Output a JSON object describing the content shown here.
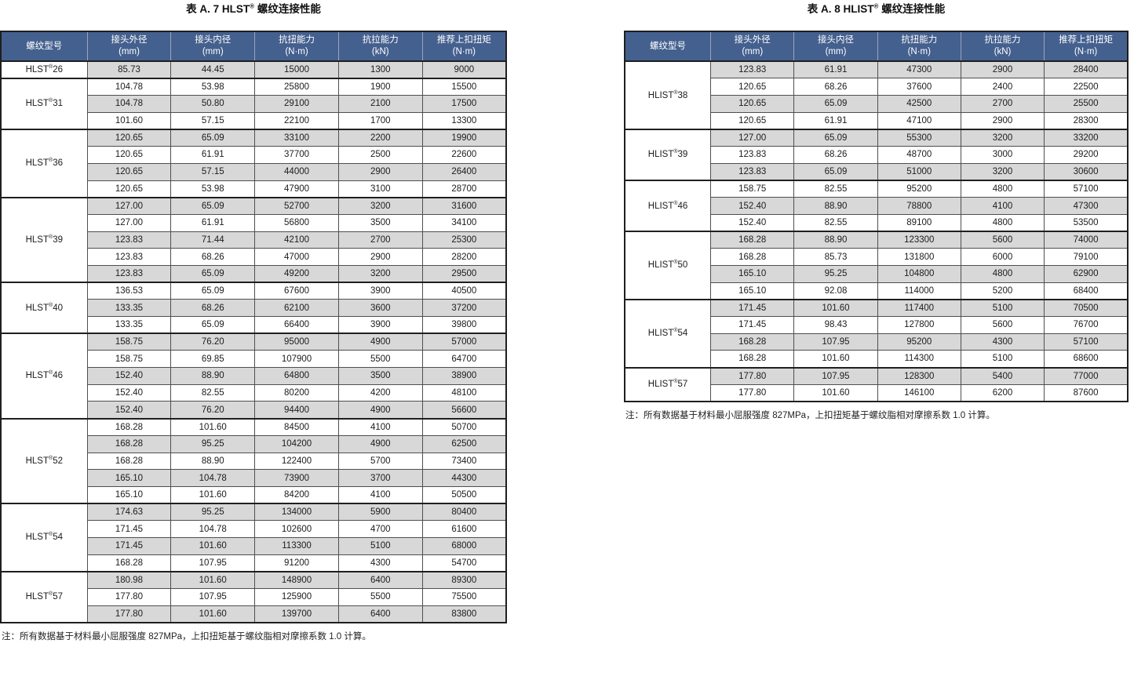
{
  "colors": {
    "header_bg": "#44608e",
    "header_text": "#ffffff",
    "row_stripe": "#d8d8d8",
    "row_white": "#ffffff",
    "border_strong": "#1f1f1f",
    "border_light": "#4f4f4f",
    "header_divider": "#9aa5bd",
    "text": "#1c1c1c"
  },
  "tables": [
    {
      "title": "表 A. 7 HLST® 螺纹连接性能",
      "note": "注：所有数据基于材料最小屈服强度 827MPa，上扣扭矩基于螺纹脂相对摩擦系数 1.0 计算。",
      "columns": [
        {
          "label": "螺纹型号",
          "unit": ""
        },
        {
          "label": "接头外径",
          "unit": "(mm)"
        },
        {
          "label": "接头内径",
          "unit": "(mm)"
        },
        {
          "label": "抗扭能力",
          "unit": "(N·m)"
        },
        {
          "label": "抗拉能力",
          "unit": "(kN)"
        },
        {
          "label": "推荐上扣扭矩",
          "unit": "(N·m)"
        }
      ],
      "groups": [
        {
          "model": "HLST®26",
          "rows": [
            [
              "85.73",
              "44.45",
              "15000",
              "1300",
              "9000"
            ]
          ]
        },
        {
          "model": "HLST®31",
          "rows": [
            [
              "104.78",
              "53.98",
              "25800",
              "1900",
              "15500"
            ],
            [
              "104.78",
              "50.80",
              "29100",
              "2100",
              "17500"
            ],
            [
              "101.60",
              "57.15",
              "22100",
              "1700",
              "13300"
            ]
          ]
        },
        {
          "model": "HLST®36",
          "rows": [
            [
              "120.65",
              "65.09",
              "33100",
              "2200",
              "19900"
            ],
            [
              "120.65",
              "61.91",
              "37700",
              "2500",
              "22600"
            ],
            [
              "120.65",
              "57.15",
              "44000",
              "2900",
              "26400"
            ],
            [
              "120.65",
              "53.98",
              "47900",
              "3100",
              "28700"
            ]
          ]
        },
        {
          "model": "HLST®39",
          "rows": [
            [
              "127.00",
              "65.09",
              "52700",
              "3200",
              "31600"
            ],
            [
              "127.00",
              "61.91",
              "56800",
              "3500",
              "34100"
            ],
            [
              "123.83",
              "71.44",
              "42100",
              "2700",
              "25300"
            ],
            [
              "123.83",
              "68.26",
              "47000",
              "2900",
              "28200"
            ],
            [
              "123.83",
              "65.09",
              "49200",
              "3200",
              "29500"
            ]
          ]
        },
        {
          "model": "HLST®40",
          "rows": [
            [
              "136.53",
              "65.09",
              "67600",
              "3900",
              "40500"
            ],
            [
              "133.35",
              "68.26",
              "62100",
              "3600",
              "37200"
            ],
            [
              "133.35",
              "65.09",
              "66400",
              "3900",
              "39800"
            ]
          ]
        },
        {
          "model": "HLST®46",
          "rows": [
            [
              "158.75",
              "76.20",
              "95000",
              "4900",
              "57000"
            ],
            [
              "158.75",
              "69.85",
              "107900",
              "5500",
              "64700"
            ],
            [
              "152.40",
              "88.90",
              "64800",
              "3500",
              "38900"
            ],
            [
              "152.40",
              "82.55",
              "80200",
              "4200",
              "48100"
            ],
            [
              "152.40",
              "76.20",
              "94400",
              "4900",
              "56600"
            ]
          ]
        },
        {
          "model": "HLST®52",
          "rows": [
            [
              "168.28",
              "101.60",
              "84500",
              "4100",
              "50700"
            ],
            [
              "168.28",
              "95.25",
              "104200",
              "4900",
              "62500"
            ],
            [
              "168.28",
              "88.90",
              "122400",
              "5700",
              "73400"
            ],
            [
              "165.10",
              "104.78",
              "73900",
              "3700",
              "44300"
            ],
            [
              "165.10",
              "101.60",
              "84200",
              "4100",
              "50500"
            ]
          ]
        },
        {
          "model": "HLST®54",
          "rows": [
            [
              "174.63",
              "95.25",
              "134000",
              "5900",
              "80400"
            ],
            [
              "171.45",
              "104.78",
              "102600",
              "4700",
              "61600"
            ],
            [
              "171.45",
              "101.60",
              "113300",
              "5100",
              "68000"
            ],
            [
              "168.28",
              "107.95",
              "91200",
              "4300",
              "54700"
            ]
          ]
        },
        {
          "model": "HLST®57",
          "rows": [
            [
              "180.98",
              "101.60",
              "148900",
              "6400",
              "89300"
            ],
            [
              "177.80",
              "107.95",
              "125900",
              "5500",
              "75500"
            ],
            [
              "177.80",
              "101.60",
              "139700",
              "6400",
              "83800"
            ]
          ]
        }
      ]
    },
    {
      "title": "表 A. 8 HLIST® 螺纹连接性能",
      "note": "注：所有数据基于材料最小屈服强度 827MPa，上扣扭矩基于螺纹脂相对摩擦系数 1.0 计算。",
      "columns": [
        {
          "label": "螺纹型号",
          "unit": ""
        },
        {
          "label": "接头外径",
          "unit": "(mm)"
        },
        {
          "label": "接头内径",
          "unit": "(mm)"
        },
        {
          "label": "抗扭能力",
          "unit": "(N·m)"
        },
        {
          "label": "抗拉能力",
          "unit": "(kN)"
        },
        {
          "label": "推荐上扣扭矩",
          "unit": "(N·m)"
        }
      ],
      "groups": [
        {
          "model": "HLIST®38",
          "rows": [
            [
              "123.83",
              "61.91",
              "47300",
              "2900",
              "28400"
            ],
            [
              "120.65",
              "68.26",
              "37600",
              "2400",
              "22500"
            ],
            [
              "120.65",
              "65.09",
              "42500",
              "2700",
              "25500"
            ],
            [
              "120.65",
              "61.91",
              "47100",
              "2900",
              "28300"
            ]
          ]
        },
        {
          "model": "HLIST®39",
          "rows": [
            [
              "127.00",
              "65.09",
              "55300",
              "3200",
              "33200"
            ],
            [
              "123.83",
              "68.26",
              "48700",
              "3000",
              "29200"
            ],
            [
              "123.83",
              "65.09",
              "51000",
              "3200",
              "30600"
            ]
          ]
        },
        {
          "model": "HLIST®46",
          "rows": [
            [
              "158.75",
              "82.55",
              "95200",
              "4800",
              "57100"
            ],
            [
              "152.40",
              "88.90",
              "78800",
              "4100",
              "47300"
            ],
            [
              "152.40",
              "82.55",
              "89100",
              "4800",
              "53500"
            ]
          ]
        },
        {
          "model": "HLIST®50",
          "rows": [
            [
              "168.28",
              "88.90",
              "123300",
              "5600",
              "74000"
            ],
            [
              "168.28",
              "85.73",
              "131800",
              "6000",
              "79100"
            ],
            [
              "165.10",
              "95.25",
              "104800",
              "4800",
              "62900"
            ],
            [
              "165.10",
              "92.08",
              "114000",
              "5200",
              "68400"
            ]
          ]
        },
        {
          "model": "HLIST®54",
          "rows": [
            [
              "171.45",
              "101.60",
              "117400",
              "5100",
              "70500"
            ],
            [
              "171.45",
              "98.43",
              "127800",
              "5600",
              "76700"
            ],
            [
              "168.28",
              "107.95",
              "95200",
              "4300",
              "57100"
            ],
            [
              "168.28",
              "101.60",
              "114300",
              "5100",
              "68600"
            ]
          ]
        },
        {
          "model": "HLIST®57",
          "rows": [
            [
              "177.80",
              "107.95",
              "128300",
              "5400",
              "77000"
            ],
            [
              "177.80",
              "101.60",
              "146100",
              "6200",
              "87600"
            ]
          ]
        }
      ]
    }
  ]
}
